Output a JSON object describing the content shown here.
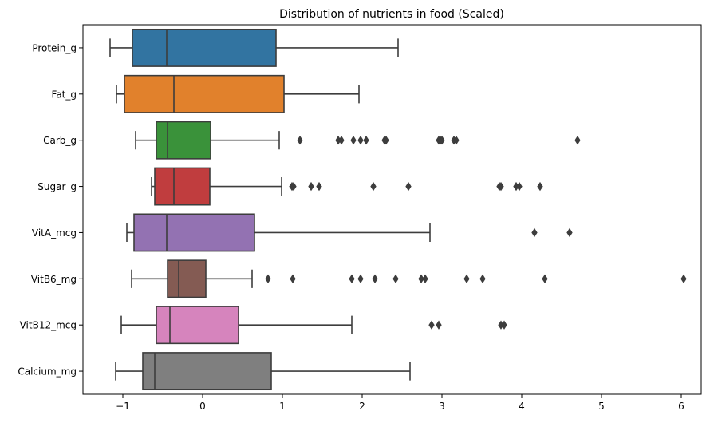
{
  "chart_data": {
    "type": "boxplot",
    "orientation": "horizontal",
    "title": "Distribution of nutrients in food (Scaled)",
    "xlabel": "",
    "ylabel": "",
    "xlim": [
      -1.5,
      6.25
    ],
    "xticks": [
      -1,
      0,
      1,
      2,
      3,
      4,
      5,
      6
    ],
    "grid": false,
    "legend": "none",
    "categories": [
      "Protein_g",
      "Fat_g",
      "Carb_g",
      "Sugar_g",
      "VitA_mcg",
      "VitB6_mg",
      "VitB12_mcg",
      "Calcium_mg"
    ],
    "series": [
      {
        "category": "Protein_g",
        "color": "#3274a1",
        "whisker_low": -1.16,
        "q1": -0.88,
        "median": -0.45,
        "q3": 0.92,
        "whisker_high": 2.45,
        "outliers": []
      },
      {
        "category": "Fat_g",
        "color": "#e1812c",
        "whisker_low": -1.08,
        "q1": -0.98,
        "median": -0.36,
        "q3": 1.02,
        "whisker_high": 1.96,
        "outliers": []
      },
      {
        "category": "Carb_g",
        "color": "#3a923a",
        "whisker_low": -0.84,
        "q1": -0.58,
        "median": -0.44,
        "q3": 0.1,
        "whisker_high": 0.96,
        "outliers": [
          1.22,
          1.7,
          1.74,
          1.89,
          1.98,
          2.05,
          2.28,
          2.3,
          2.96,
          2.98,
          3.0,
          3.15,
          3.18,
          4.7
        ]
      },
      {
        "category": "Sugar_g",
        "color": "#c03d3e",
        "whisker_low": -0.64,
        "q1": -0.6,
        "median": -0.36,
        "q3": 0.09,
        "whisker_high": 0.99,
        "outliers": [
          1.12,
          1.14,
          1.36,
          1.46,
          2.14,
          2.58,
          3.72,
          3.74,
          3.93,
          3.97,
          4.23
        ]
      },
      {
        "category": "VitA_mcg",
        "color": "#9372b2",
        "whisker_low": -0.95,
        "q1": -0.86,
        "median": -0.45,
        "q3": 0.65,
        "whisker_high": 2.85,
        "outliers": [
          4.16,
          4.6
        ]
      },
      {
        "category": "VitB6_mg",
        "color": "#845b53",
        "whisker_low": -0.89,
        "q1": -0.44,
        "median": -0.3,
        "q3": 0.04,
        "whisker_high": 0.62,
        "outliers": [
          0.82,
          1.13,
          1.87,
          1.98,
          2.16,
          2.42,
          2.74,
          2.79,
          3.31,
          3.51,
          4.29,
          6.03
        ]
      },
      {
        "category": "VitB12_mcg",
        "color": "#d684bd",
        "whisker_low": -1.02,
        "q1": -0.58,
        "median": -0.41,
        "q3": 0.45,
        "whisker_high": 1.87,
        "outliers": [
          2.87,
          2.96,
          3.74,
          3.78
        ]
      },
      {
        "category": "Calcium_mg",
        "color": "#7f7f7f",
        "whisker_low": -1.09,
        "q1": -0.75,
        "median": -0.6,
        "q3": 0.86,
        "whisker_high": 2.6,
        "outliers": []
      }
    ]
  }
}
